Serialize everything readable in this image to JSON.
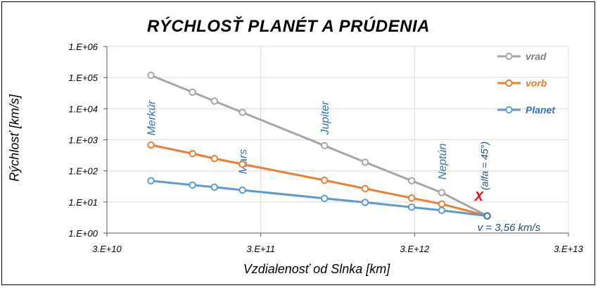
{
  "chart_data": {
    "type": "line",
    "title": "RÝCHLOSŤ PLANÉT A PRÚDENIA",
    "xlabel": "Vzdialenosť od Slnka [km]",
    "ylabel": "Rýchlosť  [km/s]",
    "xscale": "log",
    "yscale": "log",
    "xlim": [
      30000000000.0,
      30000000000000.0
    ],
    "ylim": [
      1,
      1000000
    ],
    "x_tick_labels": [
      "3.E+10",
      "3.E+11",
      "3.E+12",
      "3.E+13"
    ],
    "y_tick_labels": [
      "1.E+00",
      "1.E+01",
      "1.E+02",
      "1.E+03",
      "1.E+04",
      "1.E+05",
      "1.E+06"
    ],
    "grid": true,
    "legend_position": "right",
    "x": [
      58000000000.0,
      108000000000.0,
      150000000000.0,
      228000000000.0,
      778000000000.0,
      1430000000000.0,
      2870000000000.0,
      4500000000000.0,
      8900000000000.0
    ],
    "series": [
      {
        "name": "vrad",
        "color": "#a6a6a6",
        "values": [
          118000,
          34000,
          17500,
          7600,
          650,
          190,
          48,
          20,
          3.56
        ]
      },
      {
        "name": "vorb",
        "color": "#ed7d31",
        "values": [
          680,
          360,
          250,
          165,
          50,
          27,
          13.4,
          8.6,
          3.56
        ]
      },
      {
        "name": "Planet",
        "color": "#5b9bd5",
        "values": [
          48,
          35,
          30,
          24,
          13,
          9.7,
          6.8,
          5.4,
          3.56
        ]
      }
    ],
    "planet_labels": [
      {
        "text": "Merkúr",
        "x": 58000000000.0,
        "y": 5000
      },
      {
        "text": "Mars",
        "x": 228000000000.0,
        "y": 200
      },
      {
        "text": "Jupiter",
        "x": 778000000000.0,
        "y": 5000
      },
      {
        "text": "Neptún",
        "x": 4500000000000.0,
        "y": 200
      }
    ],
    "annotations": {
      "marker": "X",
      "marker_color": "#ff0000",
      "alfa_note": "(alfa = 45°)",
      "velocity_note": "v = 3,56 km/s"
    }
  }
}
